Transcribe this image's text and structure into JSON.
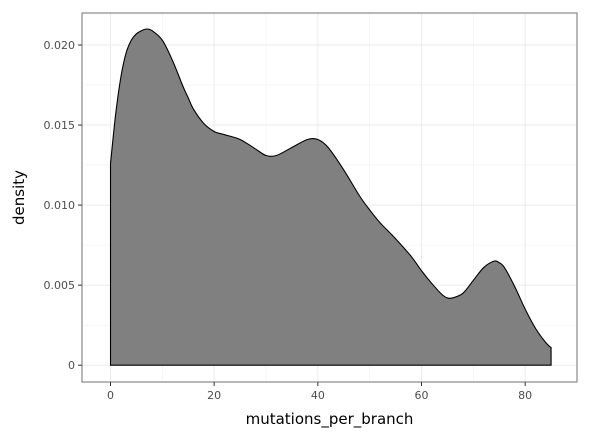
{
  "chart_data": {
    "type": "area",
    "title": "",
    "xlabel": "mutations_per_branch",
    "ylabel": "density",
    "xlim": [
      -5.5,
      90
    ],
    "ylim": [
      -0.00105,
      0.022
    ],
    "x_ticks": [
      0,
      20,
      40,
      60,
      80
    ],
    "x_tick_labels": [
      "0",
      "20",
      "40",
      "60",
      "80"
    ],
    "y_ticks": [
      0,
      0.005,
      0.01,
      0.015,
      0.02
    ],
    "y_tick_labels": [
      "0",
      "0.005",
      "0.010",
      "0.015",
      "0.020"
    ],
    "grid": true,
    "legend": "none",
    "fill_color": "#808080",
    "line_color": "#000000",
    "series": [
      {
        "x": [
          0,
          1,
          2,
          3,
          4,
          5,
          6,
          7,
          8,
          10,
          12,
          14,
          15,
          16,
          18,
          20,
          22,
          25,
          28,
          30,
          32,
          35,
          38,
          40,
          42,
          45,
          48,
          50,
          52,
          55,
          58,
          60,
          62,
          64,
          65,
          66,
          68,
          70,
          72,
          74,
          75,
          76,
          78,
          80,
          82,
          84,
          85
        ],
        "y": [
          0.0126,
          0.0157,
          0.018,
          0.0195,
          0.0203,
          0.0207,
          0.0209,
          0.021,
          0.0209,
          0.0203,
          0.019,
          0.0174,
          0.0167,
          0.016,
          0.0151,
          0.0146,
          0.0144,
          0.0141,
          0.0135,
          0.0131,
          0.0131,
          0.0136,
          0.0141,
          0.0141,
          0.0136,
          0.0122,
          0.0106,
          0.0097,
          0.0089,
          0.0079,
          0.0068,
          0.0059,
          0.0051,
          0.0044,
          0.0042,
          0.0042,
          0.0045,
          0.0053,
          0.0061,
          0.0065,
          0.0064,
          0.0061,
          0.0049,
          0.0035,
          0.0023,
          0.0014,
          0.0011
        ]
      }
    ]
  }
}
